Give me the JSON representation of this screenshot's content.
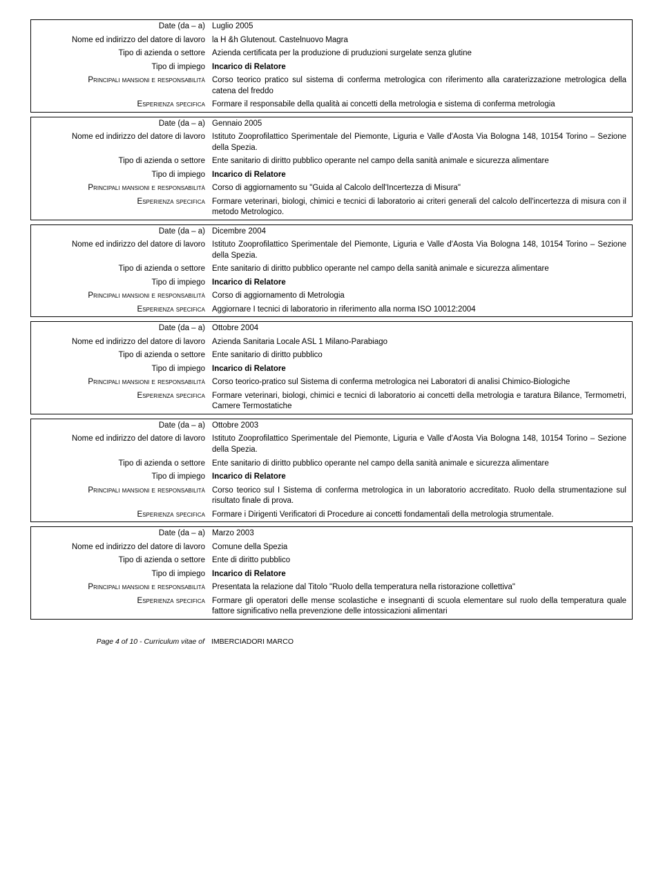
{
  "labels": {
    "date": "Date (da – a)",
    "employer": "Nome ed indirizzo del datore di lavoro",
    "sector": "Tipo di azienda o settore",
    "jobtype": "Tipo di impiego",
    "duties": "Principali mansioni e responsabilità",
    "specific": "Esperienza specifica"
  },
  "entries": [
    {
      "date": "Luglio 2005",
      "employer": "la H &h Glutenout. Castelnuovo Magra",
      "sector": "Azienda certificata per la produzione di pruduzioni surgelate senza glutine",
      "jobtype": "Incarico di Relatore",
      "duties": "Corso teorico pratico sul sistema di conferma metrologica con riferimento alla caraterizzazione metrologica della catena del freddo",
      "specific": "Formare il responsabile della qualità ai concetti della metrologia e sistema di conferma metrologia"
    },
    {
      "date": "Gennaio 2005",
      "employer": "Istituto Zooprofilattico Sperimentale del Piemonte, Liguria e Valle d'Aosta Via Bologna 148, 10154 Torino – Sezione della Spezia.",
      "sector": "Ente sanitario di diritto pubblico operante nel campo della sanità animale e sicurezza alimentare",
      "jobtype": "Incarico di Relatore",
      "duties": "Corso di aggiornamento su \"Guida al Calcolo dell'Incertezza di Misura\"",
      "specific": "Formare veterinari, biologi, chimici e tecnici di laboratorio ai criteri generali del calcolo dell'incertezza di misura con il metodo Metrologico."
    },
    {
      "date": "Dicembre 2004",
      "employer": "Istituto Zooprofilattico Sperimentale del Piemonte, Liguria e Valle d'Aosta Via Bologna 148, 10154 Torino – Sezione della Spezia.",
      "sector": "Ente sanitario di diritto pubblico operante nel campo della sanità animale e sicurezza alimentare",
      "jobtype": "Incarico di Relatore",
      "duties": "Corso di aggiornamento di Metrologia",
      "specific": "Aggiornare I tecnici di laboratorio in riferimento alla norma ISO 10012:2004"
    },
    {
      "date": "Ottobre 2004",
      "employer": "Azienda Sanitaria Locale ASL 1 Milano-Parabiago",
      "sector": "Ente sanitario di diritto pubblico",
      "jobtype": "Incarico di Relatore",
      "duties": "Corso teorico-pratico sul Sistema di conferma metrologica nei Laboratori di analisi Chimico-Biologiche",
      "specific": "Formare veterinari, biologi, chimici e tecnici di laboratorio ai concetti della metrologia e taratura Bilance, Termometri, Camere Termostatiche"
    },
    {
      "date": "Ottobre 2003",
      "employer": "Istituto Zooprofilattico Sperimentale del Piemonte, Liguria e Valle d'Aosta Via Bologna 148, 10154 Torino – Sezione della Spezia.",
      "sector": "Ente sanitario di diritto pubblico operante nel campo della sanità animale e sicurezza alimentare",
      "jobtype": "Incarico di Relatore",
      "duties": "Corso teorico sul I Sistema di conferma metrologica in un laboratorio accreditato. Ruolo della strumentazione sul risultato finale di prova.",
      "specific": "Formare i Dirigenti Verificatori di Procedure ai concetti fondamentali della metrologia strumentale."
    },
    {
      "date": "Marzo 2003",
      "employer": "Comune della Spezia",
      "sector": "Ente  di diritto pubblico",
      "jobtype": "Incarico di Relatore",
      "duties": "Presentata la relazione dal Titolo \"Ruolo della temperatura nella ristorazione collettiva\"",
      "specific": "Formare gli operatori delle mense scolastiche e insegnanti di scuola elementare sul ruolo della temperatura quale fattore significativo nella prevenzione delle intossicazioni alimentari"
    }
  ],
  "footer": {
    "left": "Page 4 of 10 - Curriculum vitae of",
    "right": "IMBERCIADORI MARCO"
  }
}
